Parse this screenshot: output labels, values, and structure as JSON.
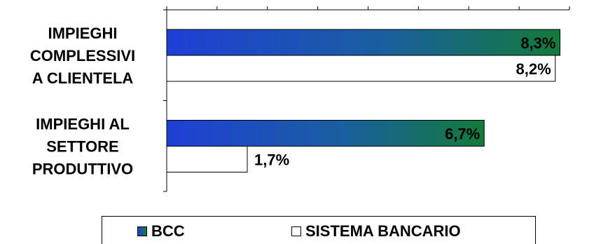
{
  "colors": {
    "bcc_start": "#1f3fd6",
    "bcc_mid": "#1a5fa0",
    "bcc_end": "#147a3a",
    "sistema": "#ffffff",
    "axis": "#000000"
  },
  "chart_data": {
    "type": "bar",
    "orientation": "horizontal",
    "categories": [
      [
        "IMPIEGHI",
        "COMPLESSIVI",
        "A CLIENTELA"
      ],
      [
        "IMPIEGHI AL",
        "SETTORE",
        "PRODUTTIVO"
      ]
    ],
    "series": [
      {
        "name": "BCC",
        "values": [
          8.3,
          6.7
        ],
        "labels": [
          "8,3%",
          "6,7%"
        ]
      },
      {
        "name": "SISTEMA BANCARIO",
        "values": [
          8.2,
          1.7
        ],
        "labels": [
          "8,2%",
          "1,7%"
        ]
      }
    ],
    "xlim": [
      0,
      8.5
    ],
    "x_tick_count": 8,
    "grid": false,
    "legend_position": "bottom"
  },
  "legend": {
    "bcc_label": "BCC",
    "sistema_label": "SISTEMA BANCARIO"
  }
}
